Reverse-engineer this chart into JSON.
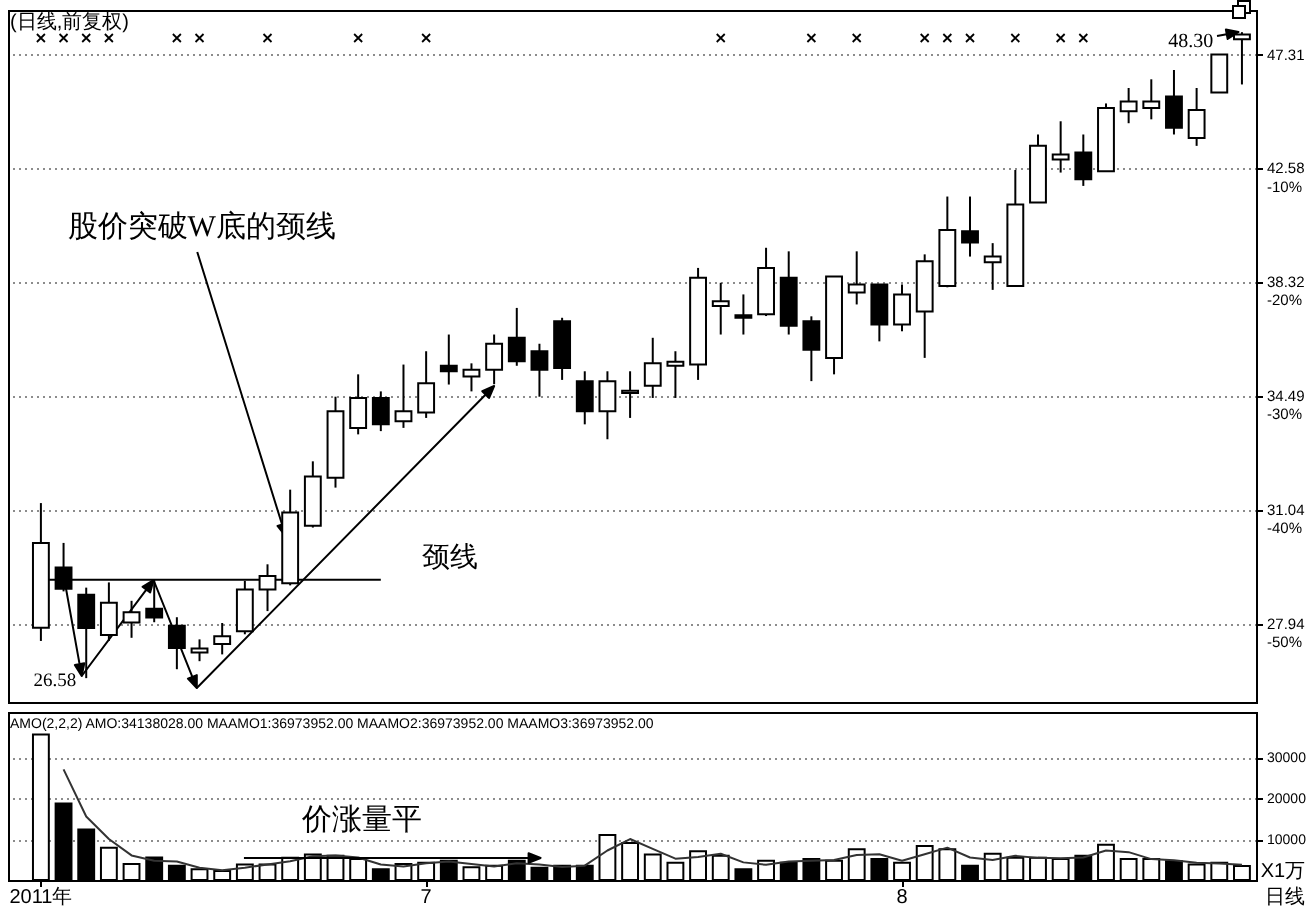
{
  "chart_data": [
    {
      "type": "candlestick",
      "title": "(日线,前复权)",
      "categories": [
        null,
        null,
        null,
        null,
        null,
        null,
        null,
        null,
        null,
        null,
        null,
        null,
        null,
        null,
        null,
        null,
        null,
        null,
        null,
        null,
        null,
        null,
        null,
        null,
        null,
        null,
        null,
        null,
        null,
        null,
        null,
        null,
        null,
        null,
        null,
        null,
        null,
        null,
        null,
        null,
        null,
        null,
        null,
        null,
        null,
        null,
        null,
        null,
        null,
        null,
        null,
        null,
        null,
        null
      ],
      "ohlc": [
        [
          27.85,
          31.25,
          27.51,
          30.12
        ],
        [
          29.44,
          30.12,
          28.8,
          28.87
        ],
        [
          28.71,
          28.9,
          26.58,
          27.84
        ],
        [
          27.66,
          29.04,
          27.51,
          28.5
        ],
        [
          27.98,
          28.55,
          27.59,
          28.25
        ],
        [
          28.34,
          29.1,
          27.99,
          28.11
        ],
        [
          27.9,
          28.12,
          26.8,
          27.33
        ],
        [
          27.22,
          27.55,
          27.0,
          27.32
        ],
        [
          27.43,
          27.97,
          27.17,
          27.63
        ],
        [
          27.76,
          29.08,
          27.68,
          28.85
        ],
        [
          28.85,
          29.53,
          28.28,
          29.21
        ],
        [
          29.02,
          31.64,
          28.96,
          30.98
        ],
        [
          30.6,
          32.48,
          30.55,
          32.03
        ],
        [
          31.99,
          34.48,
          31.7,
          34.02
        ],
        [
          33.5,
          35.2,
          33.3,
          34.44
        ],
        [
          34.44,
          34.65,
          33.4,
          33.61
        ],
        [
          33.71,
          35.52,
          33.5,
          34.02
        ],
        [
          33.98,
          35.96,
          33.81,
          34.91
        ],
        [
          35.48,
          36.52,
          34.87,
          35.3
        ],
        [
          35.13,
          35.56,
          34.65,
          35.35
        ],
        [
          35.35,
          36.52,
          34.88,
          36.21
        ],
        [
          36.41,
          37.43,
          35.48,
          35.63
        ],
        [
          35.96,
          36.21,
          34.48,
          35.35
        ],
        [
          36.97,
          37.09,
          35.02,
          35.41
        ],
        [
          34.98,
          35.3,
          33.61,
          34.02
        ],
        [
          34.02,
          35.3,
          33.15,
          34.98
        ],
        [
          34.6,
          35.3,
          33.81,
          34.67
        ],
        [
          34.83,
          36.41,
          34.44,
          35.56
        ],
        [
          35.48,
          35.96,
          34.44,
          35.61
        ],
        [
          35.52,
          38.84,
          35.02,
          38.49
        ],
        [
          37.5,
          38.31,
          36.52,
          37.66
        ],
        [
          37.18,
          37.9,
          36.52,
          37.09
        ],
        [
          37.21,
          39.57,
          37.15,
          38.84
        ],
        [
          38.49,
          39.44,
          36.52,
          36.82
        ],
        [
          36.97,
          37.14,
          34.98,
          36.01
        ],
        [
          35.74,
          38.53,
          35.2,
          38.53
        ],
        [
          37.97,
          39.44,
          37.55,
          38.25
        ],
        [
          38.25,
          38.25,
          36.29,
          36.86
        ],
        [
          36.86,
          38.25,
          36.63,
          37.9
        ],
        [
          37.31,
          39.33,
          35.74,
          39.08
        ],
        [
          38.2,
          41.49,
          38.15,
          40.23
        ],
        [
          40.18,
          41.49,
          39.25,
          39.76
        ],
        [
          39.04,
          39.74,
          38.06,
          39.25
        ],
        [
          38.2,
          42.52,
          38.2,
          41.19
        ],
        [
          41.26,
          43.94,
          41.26,
          43.48
        ],
        [
          42.94,
          44.48,
          42.42,
          43.13
        ],
        [
          43.21,
          43.94,
          41.9,
          42.16
        ],
        [
          42.47,
          45.22,
          42.47,
          45.03
        ],
        [
          44.89,
          45.87,
          44.4,
          45.3
        ],
        [
          45.03,
          46.24,
          44.56,
          45.3
        ],
        [
          45.51,
          46.64,
          43.94,
          44.21
        ],
        [
          43.8,
          45.87,
          43.48,
          44.95
        ],
        [
          45.68,
          47.31,
          45.68,
          47.31
        ],
        [
          47.98,
          48.3,
          46.02,
          48.2
        ]
      ],
      "ylim": [
        26,
        49.3
      ],
      "log": true,
      "yticks": [
        47.31,
        42.58,
        38.32,
        34.49,
        31.04,
        27.94
      ],
      "y2lim": [
        -56.85,
        3.92
      ],
      "y2ticks": [
        {
          "value": -10,
          "label": "-10%"
        },
        {
          "value": -20,
          "label": "-20%"
        },
        {
          "value": -30,
          "label": "-30%"
        },
        {
          "value": -40,
          "label": "-40%"
        },
        {
          "value": -50,
          "label": "-50%"
        }
      ],
      "grid": "y",
      "tick_labels": "y",
      "ref_lines": [
        {
          "axis": "y",
          "value": 29.11,
          "label": "颈线",
          "color": "#000000"
        }
      ],
      "annotations": [
        "股价突破W底的颈线",
        "48.30",
        "26.58"
      ]
    },
    {
      "type": "bar",
      "title": "AMO(2,2,2) AMO:34138028.00 MAAMO1:36973952.00 MAAMO2:36973952.00 MAAMO3:36973952.00",
      "xlabel": "日线",
      "ylabel": "X1万",
      "categories": [
        "2011年",
        null,
        null,
        null,
        null,
        null,
        null,
        null,
        null,
        null,
        null,
        null,
        null,
        null,
        null,
        null,
        null,
        "7",
        null,
        null,
        null,
        null,
        null,
        null,
        null,
        null,
        null,
        null,
        null,
        null,
        null,
        null,
        null,
        null,
        null,
        null,
        null,
        null,
        "8",
        null,
        null,
        null,
        null,
        null,
        null,
        null,
        null,
        null,
        null,
        null,
        null,
        null,
        null,
        null
      ],
      "series": [
        {
          "type": "bar",
          "values": [
            35500,
            18700,
            12300,
            7900,
            3900,
            5500,
            3500,
            2600,
            2200,
            3800,
            3800,
            5400,
            6200,
            5900,
            5100,
            2600,
            3900,
            4200,
            4700,
            3100,
            3500,
            4700,
            3000,
            3500,
            3500,
            11000,
            9000,
            6200,
            4200,
            7000,
            5900,
            2600,
            4700,
            4200,
            5100,
            4700,
            7500,
            5100,
            4200,
            8300,
            7500,
            3500,
            6400,
            5400,
            5400,
            5100,
            5900,
            8600,
            5100,
            5100,
            4600,
            3800,
            4200,
            3414
          ],
          "colors": [
            "#ffffff",
            "#000000",
            "#000000",
            "#ffffff",
            "#ffffff",
            "#000000",
            "#000000",
            "#ffffff",
            "#ffffff",
            "#ffffff",
            "#ffffff",
            "#ffffff",
            "#ffffff",
            "#ffffff",
            "#ffffff",
            "#000000",
            "#ffffff",
            "#ffffff",
            "#000000",
            "#ffffff",
            "#ffffff",
            "#000000",
            "#000000",
            "#000000",
            "#000000",
            "#ffffff",
            "#ffffff",
            "#ffffff",
            "#ffffff",
            "#ffffff",
            "#ffffff",
            "#000000",
            "#ffffff",
            "#000000",
            "#000000",
            "#ffffff",
            "#ffffff",
            "#000000",
            "#ffffff",
            "#ffffff",
            "#ffffff",
            "#000000",
            "#ffffff",
            "#ffffff",
            "#ffffff",
            "#ffffff",
            "#000000",
            "#ffffff",
            "#ffffff",
            "#ffffff",
            "#000000",
            "#ffffff",
            "#ffffff",
            "#ffffff"
          ]
        },
        {
          "type": "line",
          "color": "#333333",
          "values": [
            null,
            27000,
            15500,
            10000,
            6000,
            4700,
            4500,
            3000,
            2400,
            3000,
            3800,
            4600,
            5800,
            6000,
            5500,
            3800,
            3300,
            4100,
            4500,
            3900,
            3300,
            4100,
            3800,
            3200,
            3500,
            7200,
            10000,
            7600,
            5200,
            5600,
            6400,
            4300,
            3700,
            4500,
            4700,
            4900,
            6100,
            6300,
            4700,
            6300,
            7900,
            5500,
            4900,
            5900,
            5400,
            5300,
            5500,
            7200,
            6800,
            5100,
            4800,
            4200,
            4000,
            3697
          ]
        }
      ],
      "ylim": [
        0,
        41000
      ],
      "yticks": [
        10000,
        20000,
        30000
      ],
      "grid": "y",
      "annotations": [
        "价涨量平"
      ]
    }
  ]
}
